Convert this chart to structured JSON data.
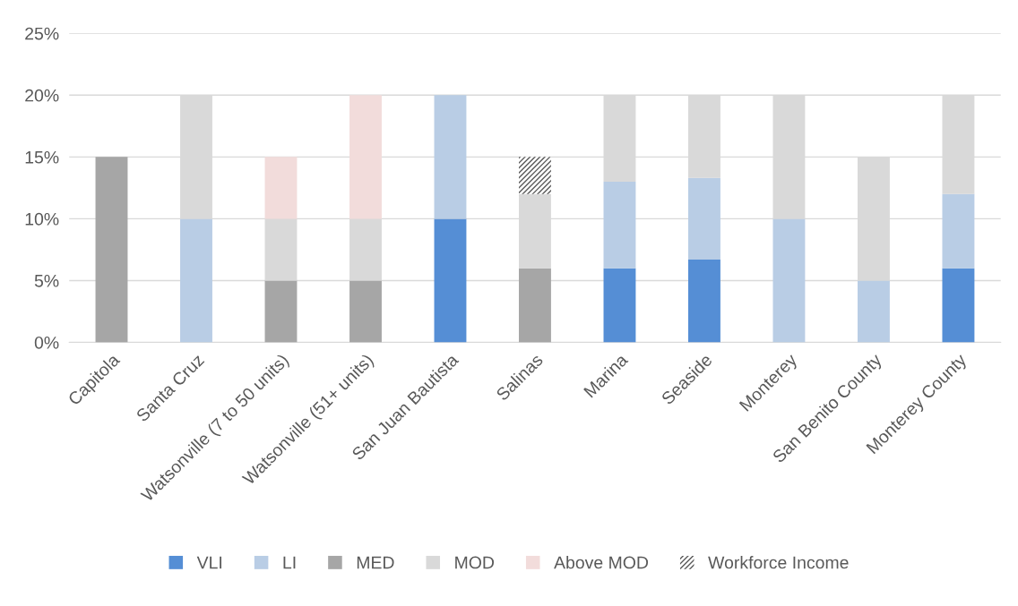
{
  "chart_data": {
    "type": "bar",
    "stacked": true,
    "categories": [
      "Capitola",
      "Santa Cruz",
      "Watsonville (7 to 50 units)",
      "Watsonville (51+ units)",
      "San Juan Bautista",
      "Salinas",
      "Marina",
      "Seaside",
      "Monterey",
      "San Benito County",
      "Monterey County"
    ],
    "series": [
      {
        "name": "VLI",
        "color": "#558ed5",
        "values": [
          0,
          0,
          0,
          0,
          10,
          0,
          6,
          6.7,
          0,
          0,
          6
        ]
      },
      {
        "name": "LI",
        "color": "#b9cde5",
        "values": [
          0,
          10,
          0,
          0,
          10,
          0,
          7,
          6.6,
          10,
          5,
          6
        ]
      },
      {
        "name": "MED",
        "color": "#a6a6a6",
        "values": [
          15,
          0,
          5,
          5,
          0,
          6,
          0,
          0,
          0,
          0,
          0
        ]
      },
      {
        "name": "MOD",
        "color": "#d9d9d9",
        "values": [
          0,
          10,
          5,
          5,
          0,
          6,
          7,
          6.7,
          10,
          10,
          8
        ]
      },
      {
        "name": "Above MOD",
        "color": "#f2dcdb",
        "values": [
          0,
          0,
          5,
          10,
          0,
          0,
          0,
          0,
          0,
          0,
          0
        ]
      },
      {
        "name": "Workforce Income",
        "color": "#595959",
        "values": [
          0,
          0,
          0,
          0,
          0,
          3,
          0,
          0,
          0,
          0,
          0
        ]
      }
    ],
    "ylim": [
      0,
      25
    ],
    "yticks": [
      {
        "value": 0,
        "label": "0%"
      },
      {
        "value": 5,
        "label": "5%"
      },
      {
        "value": 10,
        "label": "10%"
      },
      {
        "value": 15,
        "label": "15%"
      },
      {
        "value": 20,
        "label": "20%"
      },
      {
        "value": 25,
        "label": "25%"
      }
    ],
    "grid": "y",
    "legend": "bottom"
  }
}
